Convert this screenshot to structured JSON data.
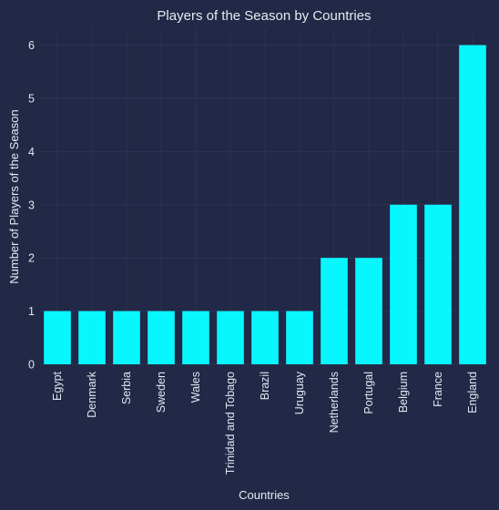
{
  "chart_data": {
    "type": "bar",
    "title": "Players of the Season by Countries",
    "xlabel": "Countries",
    "ylabel": "Number of Players of the Season",
    "categories": [
      "Egypt",
      "Denmark",
      "Serbia",
      "Sweden",
      "Wales",
      "Trinidad and Tobago",
      "Brazil",
      "Uruguay",
      "Netherlands",
      "Portugal",
      "Belgium",
      "France",
      "England"
    ],
    "values": [
      1,
      1,
      1,
      1,
      1,
      1,
      1,
      1,
      2,
      2,
      3,
      3,
      6
    ],
    "ylim": [
      0,
      6.3
    ],
    "yticks": [
      0,
      1,
      2,
      3,
      4,
      5,
      6
    ],
    "grid": true,
    "colors": {
      "background": "#212946",
      "bar": "#08F7FE",
      "grid": "#2A3459",
      "text": "#E0E6F0"
    }
  }
}
